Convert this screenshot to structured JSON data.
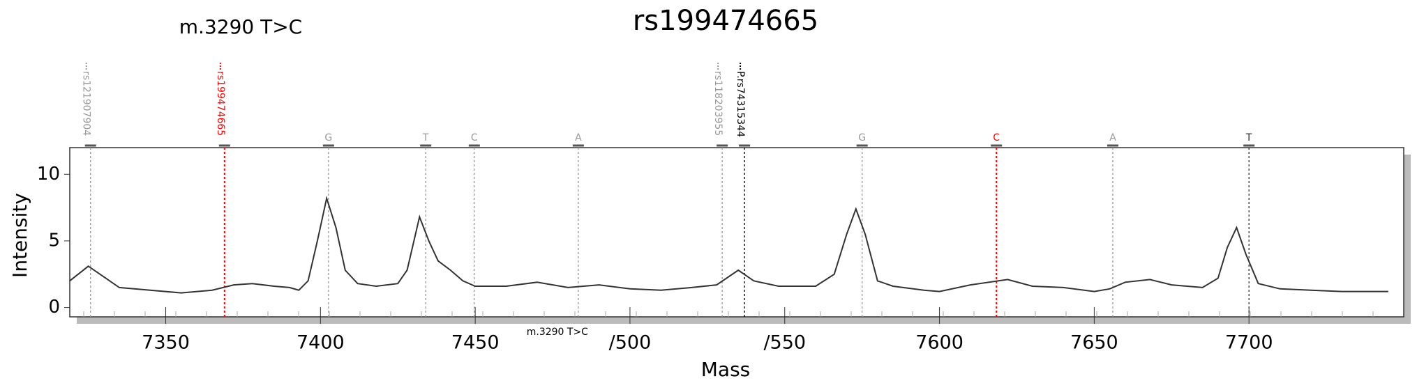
{
  "chart_data": {
    "type": "line",
    "title": "rs199474665",
    "subtitle": "m.3290 T>C",
    "x_label": "Mass",
    "y_label": "Intensity",
    "xlim": [
      7319,
      7750
    ],
    "ylim": [
      -0.7,
      12
    ],
    "xticks": [
      7350,
      7400,
      7450,
      {
        "value": 7500,
        "label": "/500"
      },
      {
        "value": 7550,
        "label": "/550"
      },
      7600,
      7650,
      7700
    ],
    "yticks": [
      0,
      5,
      10
    ],
    "series": [
      {
        "name": "Intensity",
        "color": "#333333",
        "x": [
          7319,
          7325,
          7330,
          7335,
          7345,
          7355,
          7365,
          7372,
          7378,
          7385,
          7390,
          7393,
          7396,
          7399,
          7402,
          7405,
          7408,
          7412,
          7418,
          7425,
          7428,
          7432,
          7435,
          7438,
          7442,
          7446,
          7450,
          7460,
          7470,
          7480,
          7490,
          7500,
          7510,
          7520,
          7528,
          7535,
          7540,
          7548,
          7560,
          7566,
          7570,
          7573,
          7576,
          7580,
          7585,
          7595,
          7600,
          7610,
          7622,
          7630,
          7640,
          7650,
          7655,
          7660,
          7668,
          7675,
          7685,
          7690,
          7693,
          7696,
          7699,
          7703,
          7710,
          7720,
          7730,
          7745
        ],
        "values": [
          2.0,
          3.1,
          2.3,
          1.5,
          1.3,
          1.1,
          1.3,
          1.7,
          1.8,
          1.6,
          1.5,
          1.3,
          2.0,
          5.0,
          8.2,
          6.0,
          2.8,
          1.8,
          1.6,
          1.8,
          2.8,
          6.8,
          5.0,
          3.5,
          2.8,
          2.0,
          1.6,
          1.6,
          1.9,
          1.5,
          1.7,
          1.4,
          1.3,
          1.5,
          1.7,
          2.8,
          2.0,
          1.6,
          1.6,
          2.5,
          5.5,
          7.4,
          5.5,
          2.0,
          1.6,
          1.3,
          1.2,
          1.7,
          2.1,
          1.6,
          1.5,
          1.2,
          1.4,
          1.9,
          2.1,
          1.7,
          1.5,
          2.2,
          4.5,
          6.0,
          4.0,
          1.8,
          1.4,
          1.3,
          1.2,
          1.2
        ]
      }
    ],
    "markers": [
      {
        "label": "rs121907904",
        "x": 7325.7,
        "color": "#999999",
        "long": true
      },
      {
        "label": "rs199474665",
        "x": 7369,
        "color": "#ff0000",
        "long": true
      },
      {
        "label": "G",
        "x": 7402.6,
        "color": "#999999"
      },
      {
        "label": "T",
        "x": 7434,
        "color": "#999999"
      },
      {
        "label": "C",
        "x": 7449.7,
        "color": "#999999"
      },
      {
        "label": "A",
        "x": 7483.3,
        "color": "#999999"
      },
      {
        "label": "rs118203955",
        "x": 7529.8,
        "color": "#999999",
        "long": true
      },
      {
        "label": "P.rs74315344",
        "x": 7537,
        "color": "#000000",
        "long": true
      },
      {
        "label": "G",
        "x": 7575,
        "color": "#999999"
      },
      {
        "label": "C",
        "x": 7618.4,
        "color": "#ff0000"
      },
      {
        "label": "A",
        "x": 7656,
        "color": "#999999"
      },
      {
        "label": "T",
        "x": 7700,
        "color": "#333333"
      }
    ],
    "annotation": {
      "text": "m.3290 T>C",
      "x": 7483.3
    }
  }
}
